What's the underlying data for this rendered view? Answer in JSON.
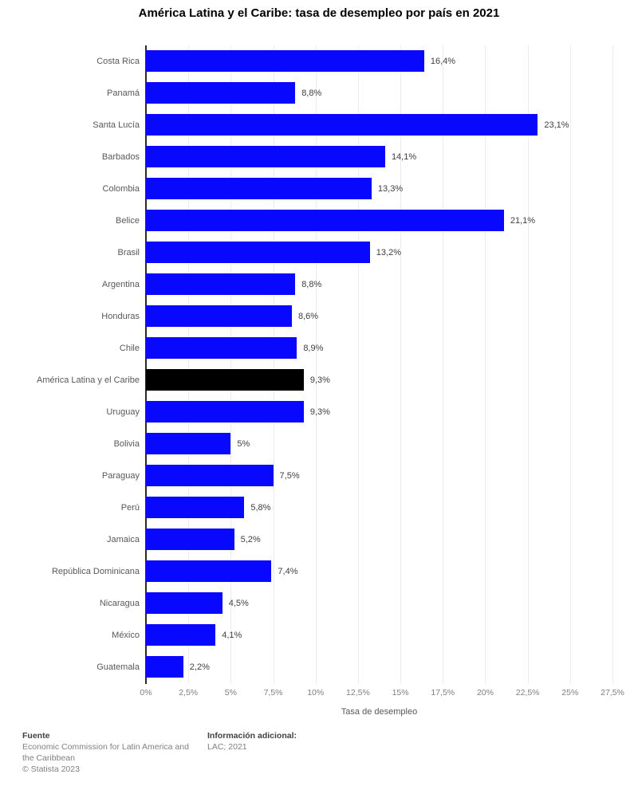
{
  "chart_data": {
    "type": "bar",
    "orientation": "horizontal",
    "title": "América Latina y el Caribe: tasa de desempleo por país en 2021",
    "xlabel": "Tasa de desempleo",
    "categories": [
      "Costa Rica",
      "Panamá",
      "Santa Lucía",
      "Barbados",
      "Colombia",
      "Belice",
      "Brasil",
      "Argentina",
      "Honduras",
      "Chile",
      "América Latina y el Caribe",
      "Uruguay",
      "Bolivia",
      "Paraguay",
      "Perú",
      "Jamaica",
      "República Dominicana",
      "Nicaragua",
      "México",
      "Guatemala"
    ],
    "values": [
      16.4,
      8.8,
      23.1,
      14.1,
      13.3,
      21.1,
      13.2,
      8.8,
      8.6,
      8.9,
      9.3,
      9.3,
      5,
      7.5,
      5.8,
      5.2,
      7.4,
      4.5,
      4.1,
      2.2
    ],
    "value_labels": [
      "16,4%",
      "8,8%",
      "23,1%",
      "14,1%",
      "13,3%",
      "21,1%",
      "13,2%",
      "8,8%",
      "8,6%",
      "8,9%",
      "9,3%",
      "9,3%",
      "5%",
      "7,5%",
      "5,8%",
      "5,2%",
      "7,4%",
      "4,5%",
      "4,1%",
      "2,2%"
    ],
    "highlight_category": "América Latina y el Caribe",
    "highlight_index": 10,
    "x_ticks": [
      "0%",
      "2,5%",
      "5%",
      "7,5%",
      "10%",
      "12,5%",
      "15%",
      "17,5%",
      "20%",
      "22,5%",
      "25%",
      "27,5%"
    ],
    "xlim": [
      0,
      27.5
    ],
    "grid": "vertical-light",
    "legend": "none",
    "colors": {
      "bar": "#0808ff",
      "highlight_bar": "#000000",
      "gridline": "#ececec",
      "axis_line": "#2b2b2b",
      "category_label": "#595959",
      "value_label": "#404040",
      "tick_label": "#7f7f7f"
    }
  },
  "footer": {
    "source_label": "Fuente",
    "source_text": "Economic Commission for Latin America and the Caribbean",
    "copyright": "© Statista 2023",
    "info_label": "Información adicional:",
    "info_text": "LAC; 2021"
  }
}
